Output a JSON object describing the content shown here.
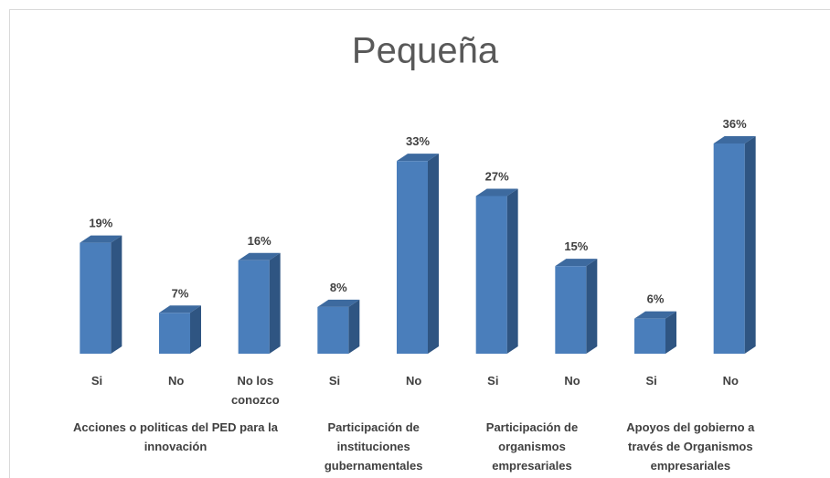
{
  "chart_data": {
    "type": "bar3d",
    "title": "Pequeña",
    "color": "#4a7ebb",
    "groups": [
      {
        "label": "Acciones o politicas del PED para la innovación",
        "categories": [
          "Si",
          "No",
          "No los conozco"
        ],
        "values": [
          19,
          7,
          16
        ],
        "value_labels": [
          "19%",
          "7%",
          "16%"
        ]
      },
      {
        "label": "Participación de instituciones gubernamentales",
        "categories": [
          "Si",
          "No"
        ],
        "values": [
          8,
          33
        ],
        "value_labels": [
          "8%",
          "33%"
        ]
      },
      {
        "label": "Participación de organismos empresariales",
        "categories": [
          "Si",
          "No"
        ],
        "values": [
          27,
          15
        ],
        "value_labels": [
          "27%",
          "15%"
        ]
      },
      {
        "label": "Apoyos del gobierno a través de Organismos empresariales",
        "categories": [
          "Si",
          "No"
        ],
        "values": [
          6,
          36
        ],
        "value_labels": [
          "6%",
          "36%"
        ]
      }
    ]
  }
}
